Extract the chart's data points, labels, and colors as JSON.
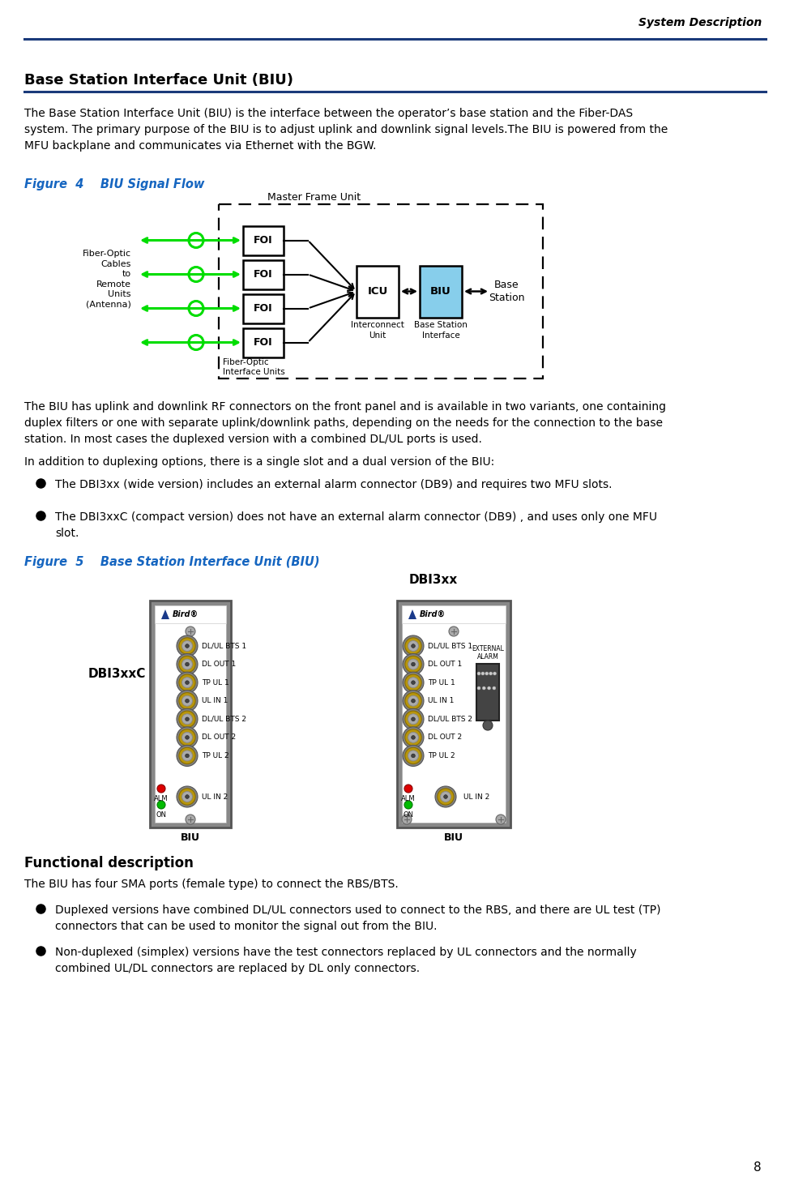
{
  "page_num": "8",
  "header_text": "System Description",
  "section_title": "Base Station Interface Unit (BIU)",
  "body_text1": "The Base Station Interface Unit (BIU) is the interface between the operator’s base station and the Fiber-DAS\nsystem. The primary purpose of the BIU is to adjust uplink and downlink signal levels.The BIU is powered from the\nMFU backplane and communicates via Ethernet with the BGW.",
  "figure4_label": "Figure  4    BIU Signal Flow",
  "body_text2": "The BIU has uplink and downlink RF connectors on the front panel and is available in two variants, one containing\nduplex filters or one with separate uplink/downlink paths, depending on the needs for the connection to the base\nstation. In most cases the duplexed version with a combined DL/UL ports is used.",
  "body_text3": "In addition to duplexing options, there is a single slot and a dual version of the BIU:",
  "bullet1": "The DBI3xx (wide version) includes an external alarm connector (DB9) and requires two MFU slots.",
  "bullet2": "The DBI3xxC (compact version) does not have an external alarm connector (DB9) , and uses only one MFU\nslot.",
  "figure5_label": "Figure  5    Base Station Interface Unit (BIU)",
  "func_desc_title": "Functional description",
  "func_desc_text": "The BIU has four SMA ports (female type) to connect the RBS/BTS.",
  "func_bullet1": "Duplexed versions have combined DL/UL connectors used to connect to the RBS, and there are UL test (TP)\nconnectors that can be used to monitor the signal out from the BIU.",
  "func_bullet2": "Non-duplexed (simplex) versions have the test connectors replaced by UL connectors and the normally\ncombined UL/DL connectors are replaced by DL only connectors.",
  "blue_line_color": "#1a3a7a",
  "figure_label_color": "#1565c0",
  "green_arrow": "#00dd00",
  "biu_fill": "#87ceeb",
  "dbi3xxc_label": "DBI3xxC",
  "dbi3xx_label": "DBI3xx",
  "port_labels": [
    "DL/UL BTS 1",
    "DL OUT 1",
    "TP UL 1",
    "UL IN 1",
    "DL/UL BTS 2",
    "DL OUT 2",
    "TP UL 2"
  ],
  "port_labels_wide_extra": "UL IN 2"
}
